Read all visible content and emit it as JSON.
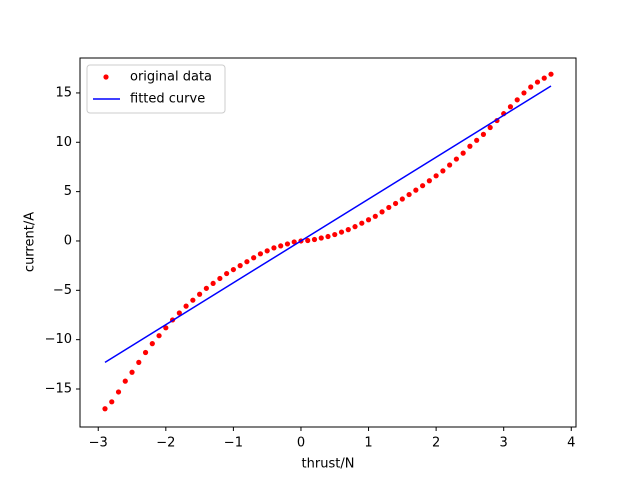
{
  "chart_data": {
    "type": "scatter",
    "x_label": "thrust/N",
    "y_label": "current/A",
    "xlim": [
      -3.27,
      4.07
    ],
    "ylim": [
      -18.85,
      18.54
    ],
    "xticks": [
      {
        "value": -3,
        "label": "−3"
      },
      {
        "value": -2,
        "label": "−2"
      },
      {
        "value": -1,
        "label": "−1"
      },
      0,
      1,
      2,
      3,
      4
    ],
    "yticks": [
      {
        "value": -15,
        "label": "−15"
      },
      {
        "value": -10,
        "label": "−10"
      },
      {
        "value": -5,
        "label": "−5"
      },
      0,
      5,
      10,
      15
    ],
    "grid": false,
    "legend": "upper left",
    "series": [
      {
        "name": "original data",
        "color": "#ff0000",
        "type": "scatter",
        "x": [
          -2.9,
          -2.8,
          -2.7,
          -2.6,
          -2.5,
          -2.4,
          -2.3,
          -2.2,
          -2.1,
          -2.0,
          -1.9,
          -1.8,
          -1.7,
          -1.6,
          -1.5,
          -1.4,
          -1.3,
          -1.2,
          -1.1,
          -1.0,
          -0.9,
          -0.8,
          -0.7,
          -0.6,
          -0.5,
          -0.4,
          -0.3,
          -0.2,
          -0.1,
          0,
          0.1,
          0.2,
          0.3,
          0.4,
          0.5,
          0.6,
          0.7,
          0.8,
          0.9,
          1.0,
          1.1,
          1.2,
          1.3,
          1.4,
          1.5,
          1.6,
          1.7,
          1.8,
          1.9,
          2.0,
          2.1,
          2.2,
          2.3,
          2.4,
          2.5,
          2.6,
          2.7,
          2.8,
          2.9,
          3.0,
          3.1,
          3.2,
          3.3,
          3.4,
          3.5,
          3.6,
          3.7
        ],
        "values": [
          -17.0,
          -16.3,
          -15.3,
          -14.2,
          -13.3,
          -12.3,
          -11.3,
          -10.4,
          -9.6,
          -8.8,
          -8.0,
          -7.3,
          -6.6,
          -6.0,
          -5.4,
          -4.8,
          -4.3,
          -3.8,
          -3.3,
          -2.9,
          -2.5,
          -2.1,
          -1.7,
          -1.3,
          -1.0,
          -0.7,
          -0.5,
          -0.3,
          -0.1,
          0,
          0.05,
          0.15,
          0.3,
          0.45,
          0.65,
          0.9,
          1.15,
          1.45,
          1.8,
          2.15,
          2.5,
          2.95,
          3.4,
          3.8,
          4.25,
          4.7,
          5.15,
          5.6,
          6.1,
          6.6,
          7.1,
          7.7,
          8.3,
          8.9,
          9.6,
          10.2,
          10.8,
          11.5,
          12.2,
          12.9,
          13.6,
          14.3,
          15.0,
          15.6,
          16.1,
          16.5,
          16.9
        ]
      },
      {
        "name": "fitted curve",
        "color": "#0000ff",
        "type": "line",
        "x": [
          -2.9,
          3.7
        ],
        "values": [
          -12.3,
          15.7
        ]
      }
    ]
  }
}
